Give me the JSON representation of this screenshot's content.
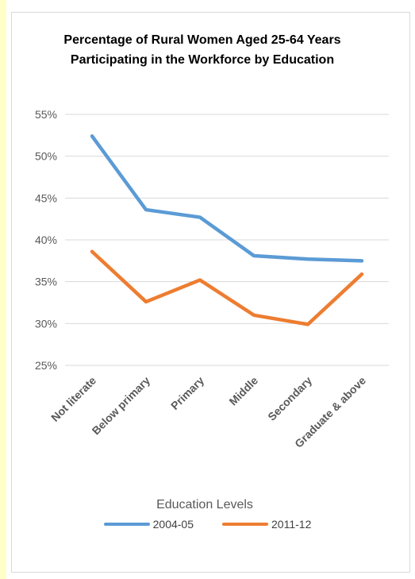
{
  "chart_data": {
    "type": "line",
    "title": "Percentage of Rural Women Aged 25-64 Years Participating in the Workforce by Education",
    "xlabel": "Education Levels",
    "ylabel": "",
    "categories": [
      "Not literate",
      "Below primary",
      "Primary",
      "Middle",
      "Secondary",
      "Graduate & above"
    ],
    "ylim": [
      25,
      55
    ],
    "yticks": [
      55,
      50,
      45,
      40,
      35,
      30,
      25
    ],
    "ytick_labels": [
      "55%",
      "50%",
      "45%",
      "40%",
      "35%",
      "30%",
      "25%"
    ],
    "grid": true,
    "legend_position": "bottom",
    "series": [
      {
        "name": "2004-05",
        "color": "#5b9bd5",
        "values": [
          52.4,
          43.6,
          42.7,
          38.1,
          37.7,
          37.5
        ]
      },
      {
        "name": "2011-12",
        "color": "#ed7d31",
        "values": [
          38.6,
          32.6,
          35.2,
          31.0,
          29.9,
          35.9
        ]
      }
    ]
  }
}
